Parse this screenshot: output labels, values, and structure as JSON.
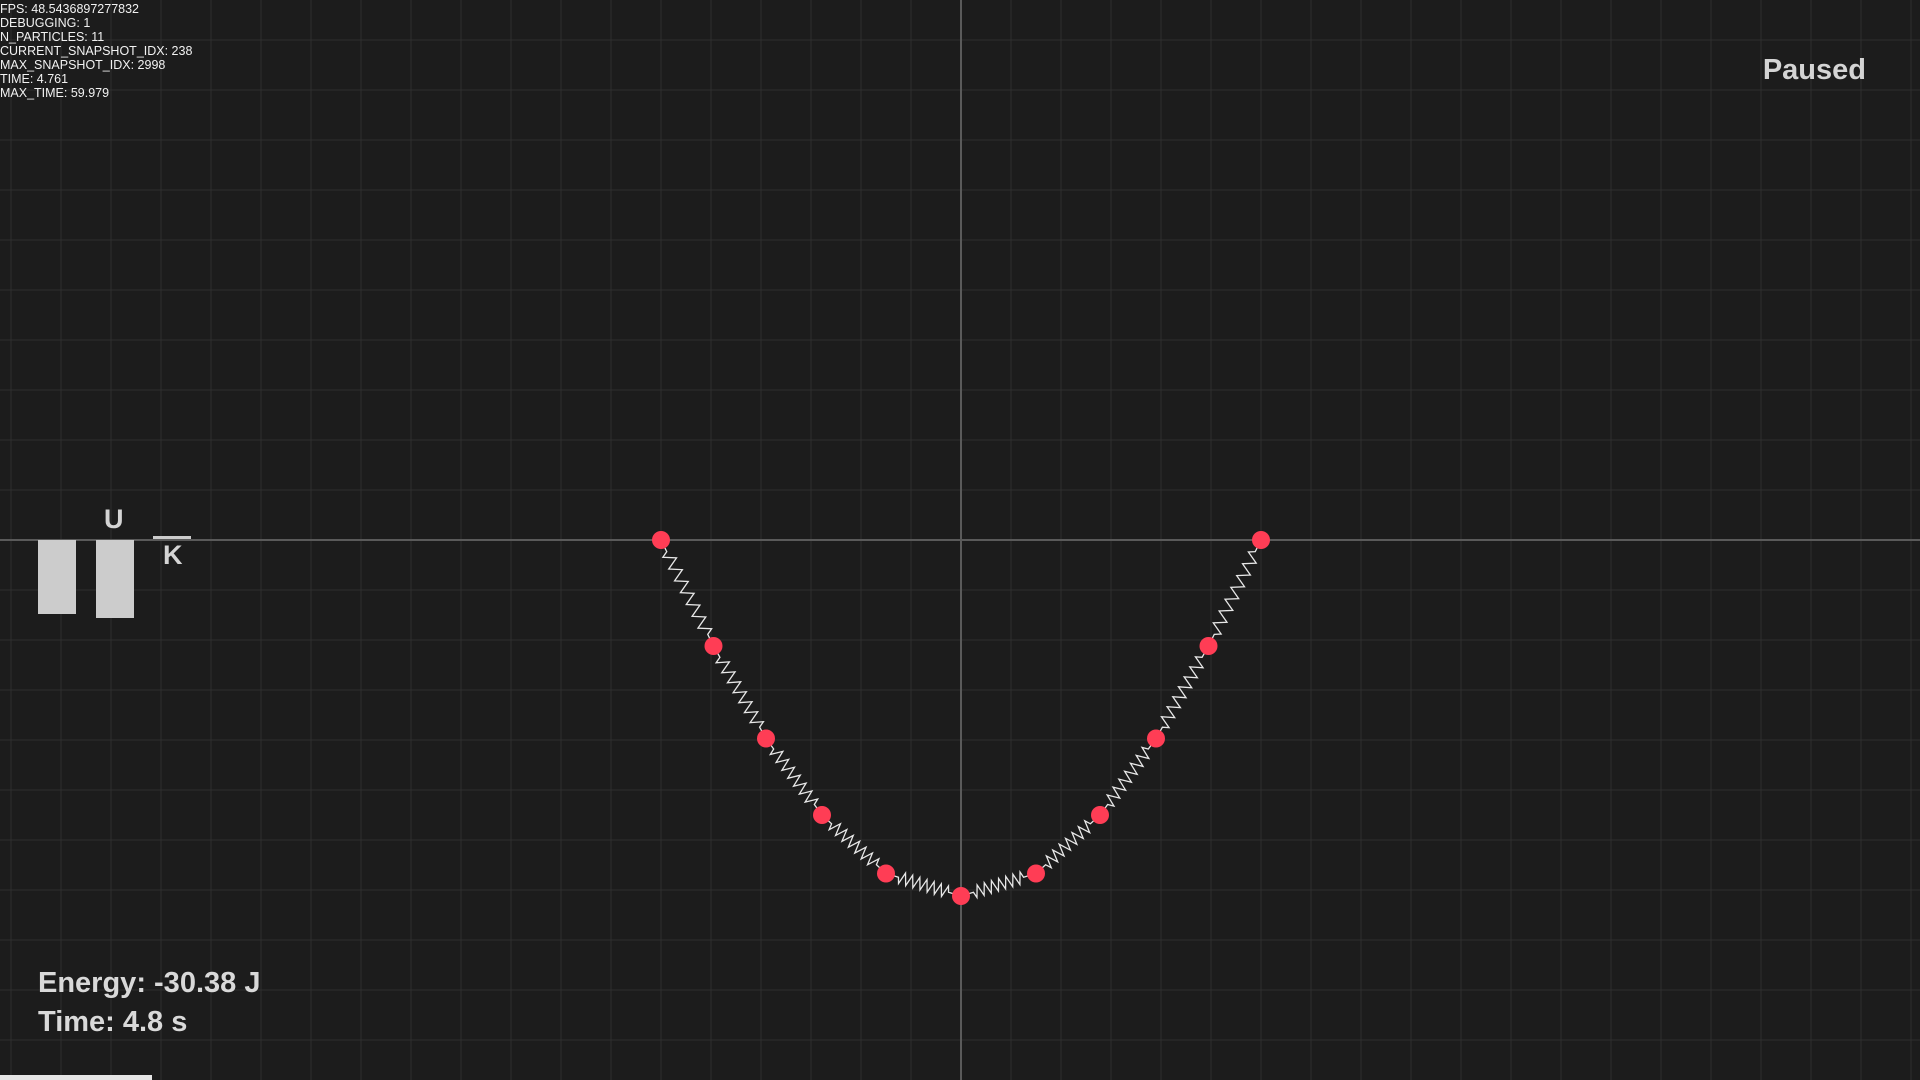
{
  "debug": {
    "fps": "FPS: 48.5436897277832",
    "debugging": "DEBUGGING: 1",
    "n_particles": "N_PARTICLES: 11",
    "current_snapshot_idx": "CURRENT_SNAPSHOT_IDX: 238",
    "max_snapshot_idx": "MAX_SNAPSHOT_IDX: 2998",
    "time": "TIME: 4.761",
    "max_time": "MAX_TIME: 59.979"
  },
  "status": "Paused",
  "energy_bars": {
    "u_label": "U",
    "k_label": "K",
    "u_fraction": 0.95,
    "k_fraction": 0.0
  },
  "info": {
    "energy": "Energy: -30.38 J",
    "time": "Time: 4.8 s"
  },
  "playback": {
    "progress": 0.079
  },
  "colors": {
    "background": "#1c1c1c",
    "grid": "#2e2e2e",
    "axis": "#5a5a5a",
    "particle": "#ff3d55",
    "spring": "#e8e8e8",
    "bar": "#cccccc"
  },
  "simulation": {
    "particles": [
      {
        "x": -6.0,
        "y": 0.0
      },
      {
        "x": -4.95,
        "y": -2.12
      },
      {
        "x": -3.9,
        "y": -3.97
      },
      {
        "x": -2.78,
        "y": -5.5
      },
      {
        "x": -1.5,
        "y": -6.67
      },
      {
        "x": 0.0,
        "y": -7.12
      },
      {
        "x": 1.5,
        "y": -6.67
      },
      {
        "x": 2.78,
        "y": -5.5
      },
      {
        "x": 3.9,
        "y": -3.97
      },
      {
        "x": 4.95,
        "y": -2.12
      },
      {
        "x": 6.0,
        "y": 0.0
      }
    ]
  }
}
